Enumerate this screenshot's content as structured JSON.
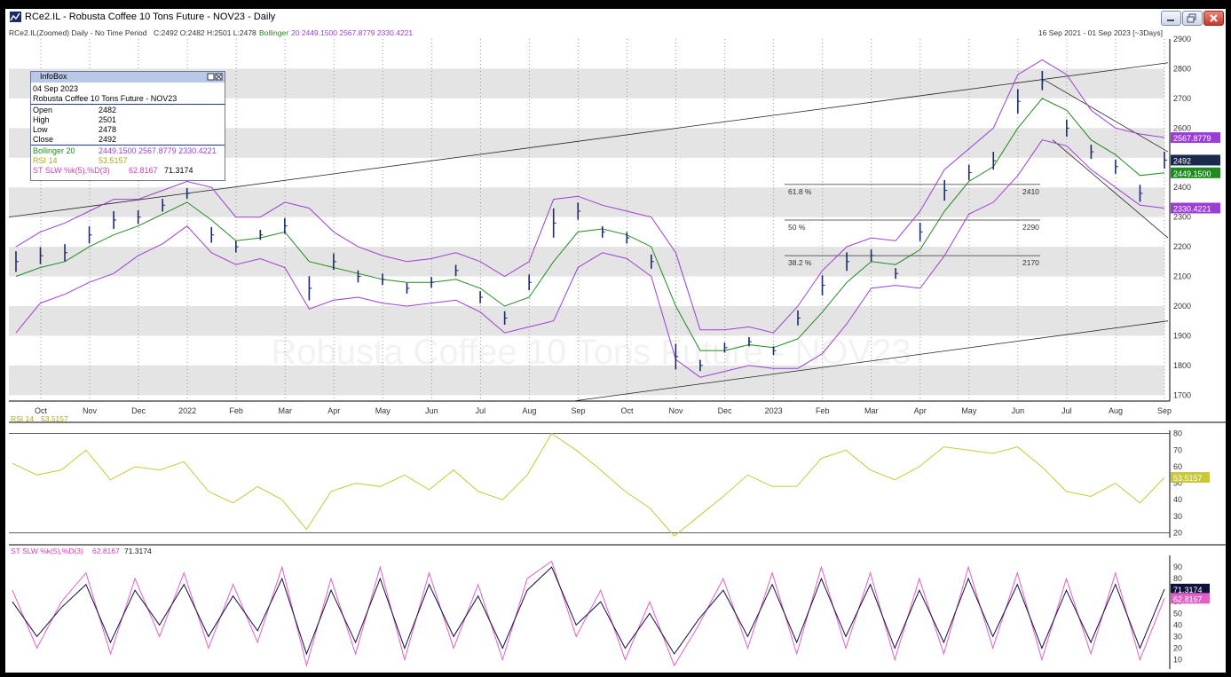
{
  "window": {
    "title": "RCe2.IL - Robusta Coffee 10 Tons Future - NOV23 - Daily",
    "header_line": "RCe2.IL(Zoomed) Daily - No Time Period",
    "header_ohlc": "C:2492 O:2482 H:2501 L:2478",
    "header_boll_label": "Bollinger",
    "header_boll_values": "20 2449.1500 2567.8779 2330.4221",
    "date_range": "16 Sep 2021 - 01 Sep 2023 [~3Days]"
  },
  "infobox": {
    "title": "InfoBox",
    "date": "04 Sep 2023",
    "instrument": "Robusta Coffee 10 Tons Future - NOV23",
    "rows": [
      {
        "label": "Open",
        "value": "2482"
      },
      {
        "label": "High",
        "value": "2501"
      },
      {
        "label": "Low",
        "value": "2478"
      },
      {
        "label": "Close",
        "value": "2492"
      }
    ],
    "bollinger_label": "Bollinger 20",
    "bollinger_values": "2449.1500  2567.8779  2330.4221",
    "rsi_label": "RSI 14",
    "rsi_value": "53.5157",
    "stoch_label": "ST SLW %k(5),%D(3)",
    "stoch_value_k": "62.8167",
    "stoch_value_d": "71.3174"
  },
  "colors": {
    "price_bars": "#1a2a6c",
    "bollinger_mid": "#1f8a1f",
    "bollinger_band": "#9b3fd4",
    "rsi_line": "#c8c83a",
    "stoch_k": "#e060c8",
    "stoch_d": "#10103a",
    "band_shade": "#e4e4e4"
  },
  "chart_data": [
    {
      "type": "line",
      "name_shown": "Price (OHLC bars) with Bollinger 20",
      "x_dates": [
        "2021-09-16",
        "2021-10-01",
        "2021-10-15",
        "2021-11-01",
        "2021-11-15",
        "2021-12-01",
        "2021-12-15",
        "2022-01-03",
        "2022-01-17",
        "2022-02-01",
        "2022-02-15",
        "2022-03-01",
        "2022-03-15",
        "2022-04-01",
        "2022-04-15",
        "2022-05-02",
        "2022-05-16",
        "2022-06-01",
        "2022-06-15",
        "2022-07-01",
        "2022-07-15",
        "2022-08-01",
        "2022-08-15",
        "2022-09-01",
        "2022-09-15",
        "2022-10-03",
        "2022-10-17",
        "2022-11-01",
        "2022-11-15",
        "2022-12-01",
        "2022-12-15",
        "2023-01-03",
        "2023-01-16",
        "2023-02-01",
        "2023-02-15",
        "2023-03-01",
        "2023-03-15",
        "2023-04-03",
        "2023-04-17",
        "2023-05-02",
        "2023-05-15",
        "2023-06-01",
        "2023-06-15",
        "2023-07-03",
        "2023-07-17",
        "2023-08-01",
        "2023-08-15",
        "2023-09-01"
      ],
      "close": [
        2150,
        2170,
        2180,
        2240,
        2290,
        2300,
        2340,
        2380,
        2240,
        2200,
        2240,
        2270,
        2060,
        2150,
        2100,
        2090,
        2060,
        2080,
        2120,
        2030,
        1960,
        2080,
        2280,
        2320,
        2250,
        2230,
        2150,
        1830,
        1800,
        1860,
        1880,
        1850,
        1960,
        2070,
        2150,
        2170,
        2110,
        2250,
        2390,
        2450,
        2490,
        2690,
        2760,
        2600,
        2520,
        2470,
        2380,
        2492
      ],
      "boll_mid": [
        2100,
        2130,
        2150,
        2200,
        2240,
        2270,
        2310,
        2350,
        2290,
        2220,
        2230,
        2250,
        2150,
        2130,
        2110,
        2090,
        2080,
        2080,
        2090,
        2060,
        2000,
        2030,
        2150,
        2250,
        2260,
        2240,
        2200,
        2000,
        1850,
        1850,
        1870,
        1860,
        1890,
        1980,
        2080,
        2150,
        2140,
        2190,
        2320,
        2420,
        2470,
        2600,
        2700,
        2660,
        2560,
        2510,
        2440,
        2449
      ],
      "boll_upper": [
        2200,
        2250,
        2280,
        2320,
        2360,
        2360,
        2390,
        2420,
        2400,
        2300,
        2300,
        2350,
        2330,
        2250,
        2200,
        2170,
        2150,
        2160,
        2180,
        2150,
        2100,
        2150,
        2360,
        2370,
        2340,
        2320,
        2300,
        2180,
        1920,
        1920,
        1930,
        1910,
        2000,
        2120,
        2200,
        2230,
        2220,
        2320,
        2460,
        2530,
        2600,
        2780,
        2830,
        2780,
        2660,
        2600,
        2580,
        2568
      ],
      "boll_lower": [
        1910,
        2010,
        2040,
        2080,
        2110,
        2170,
        2210,
        2270,
        2180,
        2140,
        2160,
        2130,
        1990,
        2020,
        2030,
        2010,
        2000,
        2010,
        2020,
        1980,
        1910,
        1930,
        1950,
        2130,
        2180,
        2160,
        2100,
        1820,
        1760,
        1780,
        1800,
        1790,
        1790,
        1840,
        1940,
        2060,
        2070,
        2060,
        2170,
        2310,
        2350,
        2440,
        2560,
        2540,
        2460,
        2400,
        2340,
        2330
      ],
      "ylim": [
        1680,
        2900
      ],
      "y_ticks": [
        1700,
        1800,
        1900,
        2000,
        2100,
        2200,
        2300,
        2400,
        2500,
        2600,
        2700,
        2800,
        2900
      ],
      "x_tick_labels": [
        "Oct",
        "Nov",
        "Dec",
        "2022",
        "Feb",
        "Mar",
        "Apr",
        "May",
        "Jun",
        "Jul",
        "Aug",
        "Sep",
        "Oct",
        "Nov",
        "Dec",
        "2023",
        "Feb",
        "Mar",
        "Apr",
        "May",
        "Jun",
        "Jul",
        "Aug",
        "Sep"
      ],
      "fib_levels": [
        {
          "label": "61.8 %",
          "value": 2410
        },
        {
          "label": "50 %",
          "value": 2290
        },
        {
          "label": "38.2 %",
          "value": 2170
        }
      ],
      "price_tags": [
        {
          "text": "2567.8779",
          "value": 2567.8779,
          "color": "#9b3fd4"
        },
        {
          "text": "2492",
          "value": 2492,
          "color": "#1a2a4c"
        },
        {
          "text": "2449.1500",
          "value": 2449.15,
          "color": "#1f8a1f"
        },
        {
          "text": "2330.4221",
          "value": 2330.4221,
          "color": "#9b3fd4"
        }
      ],
      "watermark": "Robusta Coffee 10 Tons Future - NOV23"
    },
    {
      "type": "line",
      "title": "RSI 14",
      "last_value": "53.5157",
      "values": [
        62,
        55,
        58,
        70,
        52,
        60,
        58,
        63,
        45,
        38,
        48,
        40,
        22,
        45,
        50,
        48,
        55,
        46,
        58,
        45,
        40,
        55,
        80,
        70,
        58,
        45,
        35,
        18,
        30,
        42,
        55,
        48,
        48,
        65,
        70,
        58,
        52,
        60,
        72,
        70,
        68,
        72,
        60,
        45,
        42,
        50,
        38,
        53.5
      ],
      "ylim": [
        17,
        82
      ],
      "y_ticks": [
        20,
        30,
        40,
        50,
        60,
        70,
        80
      ]
    },
    {
      "type": "line",
      "title": "ST SLW %k(5),%D(3)",
      "k_label": "62.8167",
      "d_label": "71.3174",
      "k_values": [
        70,
        20,
        60,
        85,
        15,
        80,
        30,
        85,
        20,
        75,
        25,
        90,
        5,
        80,
        15,
        90,
        10,
        85,
        20,
        75,
        10,
        80,
        95,
        30,
        70,
        10,
        60,
        5,
        40,
        80,
        20,
        85,
        15,
        90,
        20,
        85,
        10,
        80,
        15,
        90,
        20,
        85,
        10,
        80,
        15,
        85,
        10,
        63
      ],
      "d_values": [
        60,
        30,
        55,
        75,
        25,
        70,
        40,
        75,
        30,
        65,
        35,
        80,
        15,
        70,
        25,
        80,
        20,
        75,
        30,
        65,
        20,
        70,
        90,
        40,
        60,
        20,
        50,
        15,
        45,
        70,
        30,
        75,
        25,
        80,
        30,
        75,
        20,
        70,
        25,
        80,
        30,
        75,
        20,
        70,
        25,
        75,
        20,
        71
      ],
      "ylim": [
        2,
        100
      ],
      "y_ticks": [
        10,
        20,
        30,
        40,
        50,
        60,
        70,
        80,
        90
      ]
    }
  ]
}
